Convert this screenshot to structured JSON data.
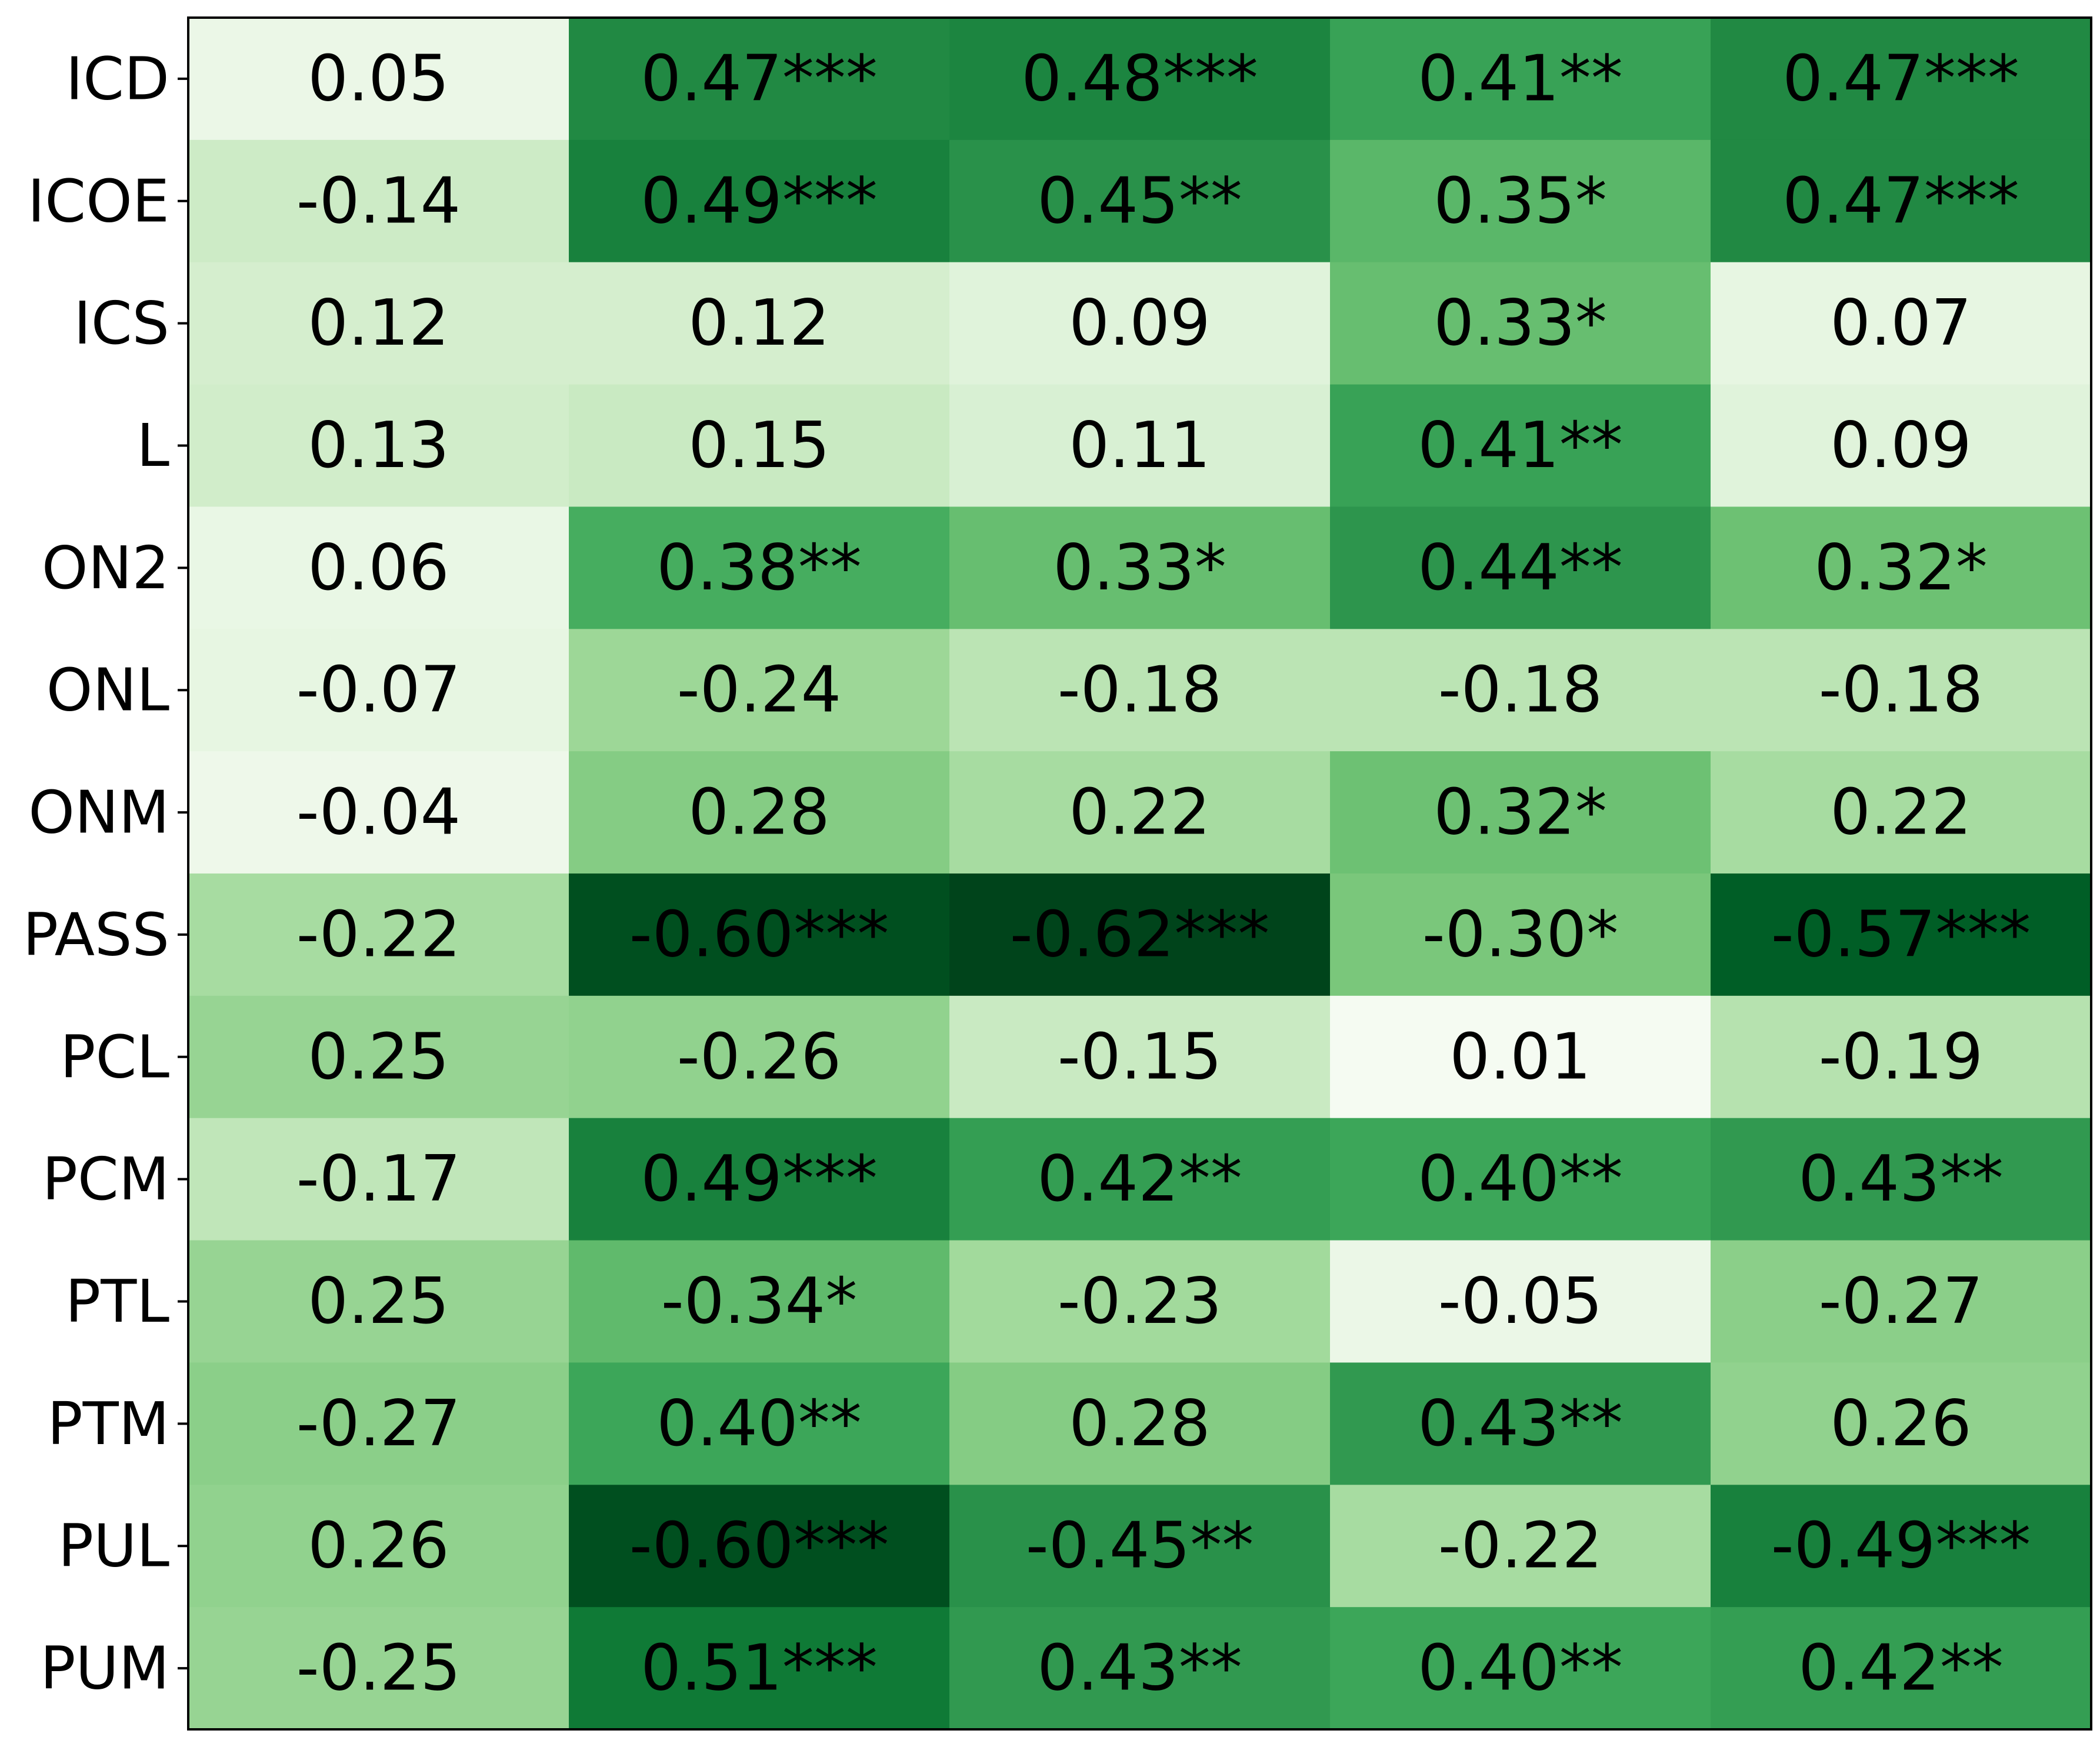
{
  "chart_data": {
    "type": "heatmap",
    "colormap": "Greens",
    "color_range": [
      0,
      0.62
    ],
    "rows": [
      "ICD",
      "ICOE",
      "ICS",
      "L",
      "ON2",
      "ONL",
      "ONM",
      "PASS",
      "PCL",
      "PCM",
      "PTL",
      "PTM",
      "PUL",
      "PUM"
    ],
    "values": [
      [
        0.05,
        0.47,
        0.48,
        0.41,
        0.47
      ],
      [
        -0.14,
        0.49,
        0.45,
        0.35,
        0.47
      ],
      [
        0.12,
        0.12,
        0.09,
        0.33,
        0.07
      ],
      [
        0.13,
        0.15,
        0.11,
        0.41,
        0.09
      ],
      [
        0.06,
        0.38,
        0.33,
        0.44,
        0.32
      ],
      [
        -0.07,
        -0.24,
        -0.18,
        -0.18,
        -0.18
      ],
      [
        -0.04,
        0.28,
        0.22,
        0.32,
        0.22
      ],
      [
        -0.22,
        -0.6,
        -0.62,
        -0.3,
        -0.57
      ],
      [
        0.25,
        -0.26,
        -0.15,
        0.01,
        -0.19
      ],
      [
        -0.17,
        0.49,
        0.42,
        0.4,
        0.43
      ],
      [
        0.25,
        -0.34,
        -0.23,
        -0.05,
        -0.27
      ],
      [
        -0.27,
        0.4,
        0.28,
        0.43,
        0.26
      ],
      [
        0.26,
        -0.6,
        -0.45,
        -0.22,
        -0.49
      ],
      [
        -0.25,
        0.51,
        0.43,
        0.4,
        0.42
      ]
    ],
    "labels": [
      [
        "0.05",
        "0.47***",
        "0.48***",
        "0.41**",
        "0.47***"
      ],
      [
        "-0.14",
        "0.49***",
        "0.45**",
        "0.35*",
        "0.47***"
      ],
      [
        "0.12",
        "0.12",
        "0.09",
        "0.33*",
        "0.07"
      ],
      [
        "0.13",
        "0.15",
        "0.11",
        "0.41**",
        "0.09"
      ],
      [
        "0.06",
        "0.38**",
        "0.33*",
        "0.44**",
        "0.32*"
      ],
      [
        "-0.07",
        "-0.24",
        "-0.18",
        "-0.18",
        "-0.18"
      ],
      [
        "-0.04",
        "0.28",
        "0.22",
        "0.32*",
        "0.22"
      ],
      [
        "-0.22",
        "-0.60***",
        "-0.62***",
        "-0.30*",
        "-0.57***"
      ],
      [
        "0.25",
        "-0.26",
        "-0.15",
        "0.01",
        "-0.19"
      ],
      [
        "-0.17",
        "0.49***",
        "0.42**",
        "0.40**",
        "0.43**"
      ],
      [
        "0.25",
        "-0.34*",
        "-0.23",
        "-0.05",
        "-0.27"
      ],
      [
        "-0.27",
        "0.40**",
        "0.28",
        "0.43**",
        "0.26"
      ],
      [
        "0.26",
        "-0.60***",
        "-0.45**",
        "-0.22",
        "-0.49***"
      ],
      [
        "-0.25",
        "0.51***",
        "0.43**",
        "0.40**",
        "0.42**"
      ]
    ],
    "title": "",
    "xlabel": "",
    "ylabel": "",
    "grid": false
  }
}
